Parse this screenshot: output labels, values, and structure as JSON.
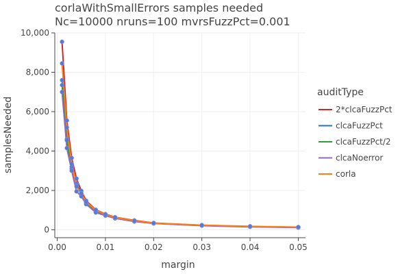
{
  "chart_data": {
    "type": "line",
    "title": "corlaWithSmallErrors samples needed",
    "subtitle": "Nc=10000 nruns=100 mvrsFuzzPct=0.001",
    "xlabel": "margin",
    "ylabel": "samplesNeeded",
    "xlim": [
      -0.0005,
      0.0515
    ],
    "ylim": [
      -400,
      10000
    ],
    "xticks": [
      0,
      0.01,
      0.02,
      0.03,
      0.04,
      0.05
    ],
    "xtick_labels": [
      "0.00",
      "0.01",
      "0.02",
      "0.03",
      "0.04",
      "0.05"
    ],
    "yticks": [
      0,
      2000,
      4000,
      6000,
      8000,
      10000
    ],
    "ytick_labels": [
      "0",
      "2,000",
      "4,000",
      "6,000",
      "8,000",
      "10,000"
    ],
    "grid": true,
    "legend_title": "auditType",
    "legend_position": "right",
    "marker_color": "#5b78d2",
    "x": [
      0.001,
      0.002,
      0.003,
      0.004,
      0.005,
      0.006,
      0.008,
      0.01,
      0.012,
      0.016,
      0.02,
      0.03,
      0.04,
      0.05
    ],
    "series": [
      {
        "name": "2*clcaFuzzPct",
        "color": "#d62728",
        "values": [
          9550,
          5550,
          3650,
          2600,
          1980,
          1480,
          1020,
          800,
          640,
          480,
          350,
          230,
          170,
          130
        ]
      },
      {
        "name": "clcaFuzzPct",
        "color": "#1f77b4",
        "values": [
          7600,
          4600,
          3100,
          2350,
          1850,
          1380,
          950,
          750,
          610,
          440,
          330,
          220,
          160,
          120
        ]
      },
      {
        "name": "clcaFuzzPct/2",
        "color": "#2ca02c",
        "values": [
          7350,
          4550,
          3200,
          2250,
          1800,
          1350,
          930,
          740,
          600,
          430,
          330,
          220,
          160,
          120
        ]
      },
      {
        "name": "clcaNoerror",
        "color": "#9467bd",
        "values": [
          7000,
          4150,
          3000,
          1950,
          1700,
          1300,
          880,
          720,
          580,
          420,
          320,
          210,
          150,
          115
        ]
      },
      {
        "name": "corla",
        "color": "#ff7f0e",
        "values": [
          8450,
          5200,
          3350,
          2200,
          1850,
          1420,
          1000,
          780,
          630,
          460,
          340,
          240,
          180,
          140
        ]
      }
    ]
  }
}
